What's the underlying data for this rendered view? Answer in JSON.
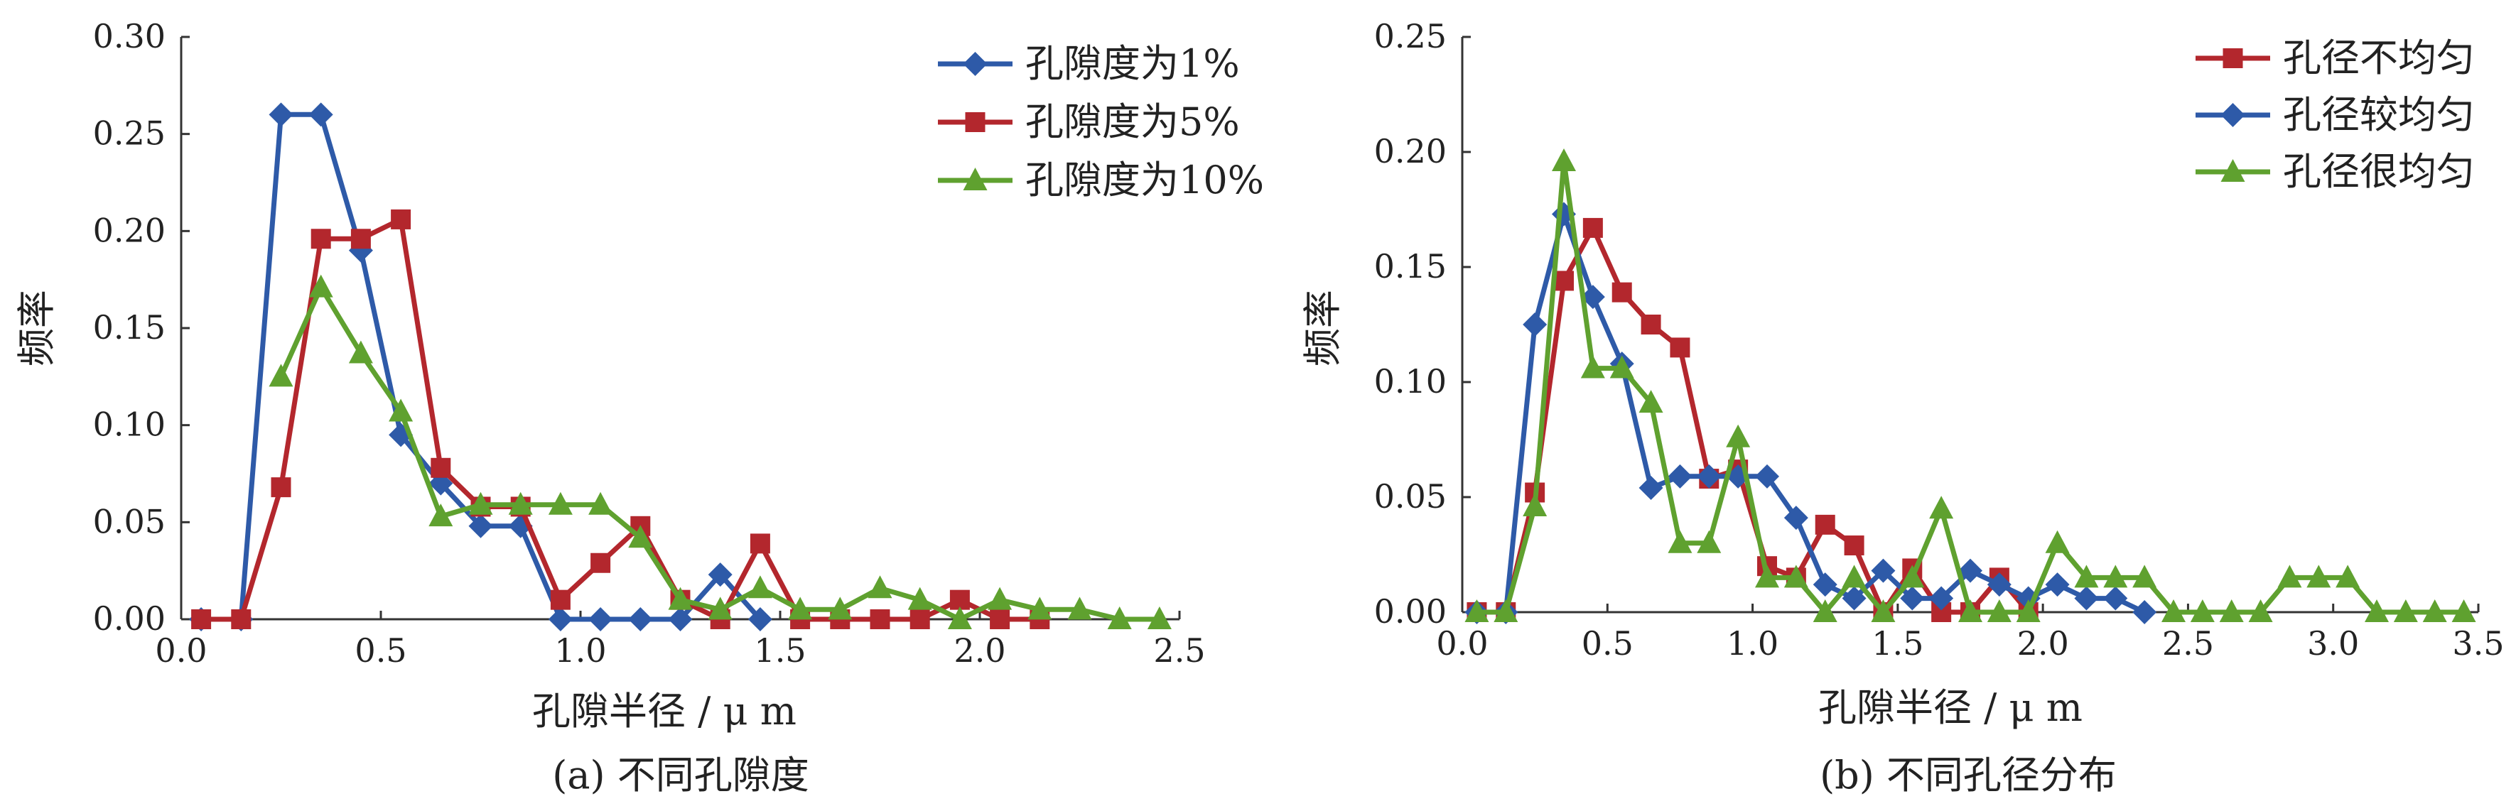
{
  "chart_data": [
    {
      "type": "line",
      "caption": "(a) 不同孔隙度",
      "xlabel": "孔隙半径 / μ m",
      "ylabel": "频率",
      "xlim": [
        0.0,
        2.5
      ],
      "ylim": [
        0.0,
        0.3
      ],
      "xticks": [
        "0.0",
        "0.5",
        "1.0",
        "1.5",
        "2.0",
        "2.5"
      ],
      "yticks": [
        "0.00",
        "0.05",
        "0.10",
        "0.15",
        "0.20",
        "0.25",
        "0.30"
      ],
      "grid": false,
      "legend_position": "top-right",
      "series": [
        {
          "name": "孔隙度为1%",
          "color": "#2e5aa8",
          "marker": "diamond",
          "x": [
            0.05,
            0.15,
            0.25,
            0.35,
            0.45,
            0.55,
            0.65,
            0.75,
            0.85,
            0.95,
            1.05,
            1.15,
            1.25,
            1.35,
            1.45
          ],
          "y": [
            0.0,
            0.0,
            0.26,
            0.26,
            0.19,
            0.095,
            0.07,
            0.048,
            0.048,
            0.0,
            0.0,
            0.0,
            0.0,
            0.023,
            0.0
          ]
        },
        {
          "name": "孔隙度为5%",
          "color": "#b3272d",
          "marker": "square",
          "x": [
            0.05,
            0.15,
            0.25,
            0.35,
            0.45,
            0.55,
            0.65,
            0.75,
            0.85,
            0.95,
            1.05,
            1.15,
            1.25,
            1.35,
            1.45,
            1.55,
            1.65,
            1.75,
            1.85,
            1.95,
            2.05,
            2.15
          ],
          "y": [
            0.0,
            0.0,
            0.068,
            0.196,
            0.196,
            0.206,
            0.078,
            0.058,
            0.058,
            0.01,
            0.029,
            0.048,
            0.01,
            0.0,
            0.039,
            0.0,
            0.0,
            0.0,
            0.0,
            0.01,
            0.0,
            0.0
          ]
        },
        {
          "name": "孔隙度为10%",
          "color": "#5fa12f",
          "marker": "triangle",
          "x": [
            0.25,
            0.35,
            0.45,
            0.55,
            0.65,
            0.75,
            0.85,
            0.95,
            1.05,
            1.15,
            1.25,
            1.35,
            1.45,
            1.55,
            1.65,
            1.75,
            1.85,
            1.95,
            2.05,
            2.15,
            2.25,
            2.35,
            2.45
          ],
          "y": [
            0.125,
            0.171,
            0.137,
            0.107,
            0.053,
            0.059,
            0.059,
            0.059,
            0.059,
            0.042,
            0.01,
            0.005,
            0.016,
            0.005,
            0.005,
            0.016,
            0.01,
            0.0,
            0.01,
            0.005,
            0.005,
            0.0,
            0.0
          ]
        }
      ]
    },
    {
      "type": "line",
      "caption": "(b) 不同孔径分布",
      "xlabel": "孔隙半径 / μ m",
      "ylabel": "频率",
      "xlim": [
        0.0,
        3.5
      ],
      "ylim": [
        0.0,
        0.25
      ],
      "xticks": [
        "0.0",
        "0.5",
        "1.0",
        "1.5",
        "2.0",
        "2.5",
        "3.0",
        "3.5"
      ],
      "yticks": [
        "0.00",
        "0.05",
        "0.10",
        "0.15",
        "0.20",
        "0.25"
      ],
      "grid": false,
      "legend_position": "top-right",
      "series": [
        {
          "name": "孔径不均匀",
          "color": "#b3272d",
          "marker": "square",
          "x": [
            0.05,
            0.15,
            0.25,
            0.35,
            0.45,
            0.55,
            0.65,
            0.75,
            0.85,
            0.95,
            1.05,
            1.15,
            1.25,
            1.35,
            1.45,
            1.55,
            1.65,
            1.75,
            1.85,
            1.95
          ],
          "y": [
            0.0,
            0.0,
            0.052,
            0.144,
            0.167,
            0.139,
            0.125,
            0.115,
            0.058,
            0.062,
            0.02,
            0.015,
            0.038,
            0.029,
            0.0,
            0.019,
            0.0,
            0.0,
            0.015,
            0.0
          ]
        },
        {
          "name": "孔径较均匀",
          "color": "#2e5aa8",
          "marker": "diamond",
          "x": [
            0.05,
            0.15,
            0.25,
            0.35,
            0.45,
            0.55,
            0.65,
            0.75,
            0.85,
            0.95,
            1.05,
            1.15,
            1.25,
            1.35,
            1.45,
            1.55,
            1.65,
            1.75,
            1.85,
            1.95,
            2.05,
            2.15,
            2.25,
            2.35
          ],
          "y": [
            0.0,
            0.0,
            0.125,
            0.173,
            0.137,
            0.108,
            0.054,
            0.059,
            0.059,
            0.059,
            0.059,
            0.041,
            0.012,
            0.006,
            0.018,
            0.006,
            0.006,
            0.018,
            0.012,
            0.006,
            0.012,
            0.006,
            0.006,
            0.0
          ]
        },
        {
          "name": "孔径很均匀",
          "color": "#5fa12f",
          "marker": "triangle",
          "x": [
            0.05,
            0.15,
            0.25,
            0.35,
            0.45,
            0.55,
            0.65,
            0.75,
            0.85,
            0.95,
            1.05,
            1.15,
            1.25,
            1.35,
            1.45,
            1.55,
            1.65,
            1.75,
            1.85,
            1.95,
            2.05,
            2.15,
            2.25,
            2.35,
            2.45,
            2.55,
            2.65,
            2.75,
            2.85,
            2.95,
            3.05,
            3.15,
            3.25,
            3.35,
            3.45
          ],
          "y": [
            0.0,
            0.0,
            0.046,
            0.196,
            0.106,
            0.106,
            0.091,
            0.03,
            0.03,
            0.076,
            0.015,
            0.015,
            0.0,
            0.015,
            0.0,
            0.015,
            0.045,
            0.0,
            0.0,
            0.0,
            0.03,
            0.015,
            0.015,
            0.015,
            0.0,
            0.0,
            0.0,
            0.0,
            0.015,
            0.015,
            0.015,
            0.0,
            0.0,
            0.0,
            0.0
          ]
        }
      ]
    }
  ]
}
